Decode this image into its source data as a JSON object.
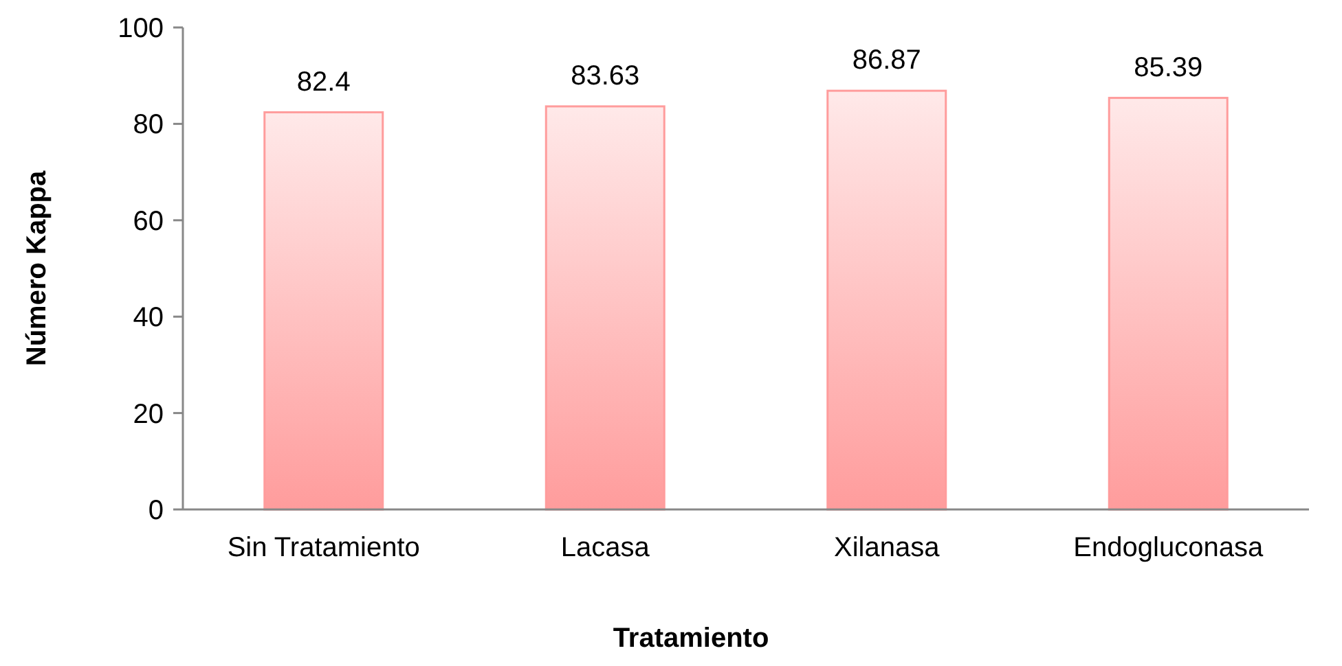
{
  "chart_data": {
    "type": "bar",
    "xlabel": "Tratamiento",
    "ylabel": "Número Kappa",
    "categories": [
      "Sin Tratamiento",
      "Lacasa",
      "Xilanasa",
      "Endogluconasa"
    ],
    "values": [
      82.4,
      83.63,
      86.87,
      85.39
    ],
    "color": "#ff9c9c",
    "ylim": [
      0,
      100
    ],
    "yticks": [
      0,
      20,
      40,
      60,
      80,
      100
    ],
    "data_labels": true,
    "grid": false
  }
}
